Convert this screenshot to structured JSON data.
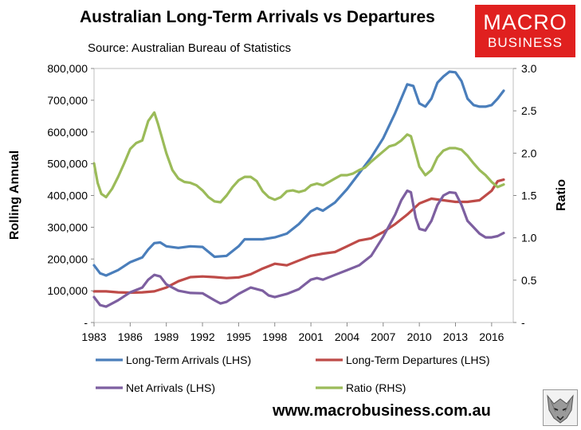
{
  "chart_data": {
    "type": "line",
    "title": "Australian Long-Term Arrivals vs Departures",
    "subtitle": "Source: Australian Bureau of Statistics",
    "ylabel": "Rolling Annual",
    "y2label": "Ratio",
    "xlim": [
      1983,
      2017.2
    ],
    "ylim": [
      0,
      800000
    ],
    "y2lim": [
      0,
      3.0
    ],
    "xticks": [
      "1983",
      "1986",
      "1989",
      "1992",
      "1995",
      "1998",
      "2001",
      "2004",
      "2007",
      "2010",
      "2013",
      "2016"
    ],
    "xtick_values": [
      1983,
      1986,
      1989,
      1992,
      1995,
      1998,
      2001,
      2004,
      2007,
      2010,
      2013,
      2016
    ],
    "yticks": [
      "-",
      "100,000",
      "200,000",
      "300,000",
      "400,000",
      "500,000",
      "600,000",
      "700,000",
      "800,000"
    ],
    "ytick_values": [
      0,
      100000,
      200000,
      300000,
      400000,
      500000,
      600000,
      700000,
      800000
    ],
    "y2ticks": [
      "-",
      "0.5",
      "1.0",
      "1.5",
      "2.0",
      "2.5",
      "3.0"
    ],
    "y2tick_values": [
      0,
      0.5,
      1.0,
      1.5,
      2.0,
      2.5,
      3.0
    ],
    "legend_position": "bottom",
    "series": [
      {
        "name": "Long-Term Arrivals (LHS)",
        "axis": "left",
        "color": "#4a7ebb",
        "x": [
          1983,
          1983.5,
          1984,
          1985,
          1986,
          1987,
          1987.5,
          1988,
          1988.5,
          1989,
          1990,
          1991,
          1992,
          1993,
          1994,
          1995,
          1995.5,
          1996,
          1997,
          1998,
          1999,
          2000,
          2001,
          2001.5,
          2002,
          2003,
          2004,
          2005,
          2006,
          2007,
          2008,
          2009,
          2009.5,
          2010,
          2010.5,
          2011,
          2011.5,
          2012,
          2012.5,
          2013,
          2013.5,
          2014,
          2014.5,
          2015,
          2015.5,
          2016,
          2016.5,
          2017
        ],
        "y": [
          180000,
          155000,
          148000,
          165000,
          190000,
          205000,
          230000,
          250000,
          252000,
          240000,
          235000,
          240000,
          238000,
          207000,
          210000,
          240000,
          262000,
          262000,
          262000,
          268000,
          280000,
          310000,
          350000,
          360000,
          352000,
          378000,
          420000,
          470000,
          520000,
          580000,
          660000,
          750000,
          745000,
          690000,
          680000,
          705000,
          755000,
          775000,
          790000,
          788000,
          760000,
          705000,
          685000,
          680000,
          680000,
          685000,
          705000,
          730000
        ]
      },
      {
        "name": "Long-Term Departures (LHS)",
        "axis": "left",
        "color": "#be4b48",
        "x": [
          1983,
          1984,
          1985,
          1986,
          1987,
          1988,
          1989,
          1990,
          1991,
          1992,
          1993,
          1994,
          1995,
          1996,
          1997,
          1998,
          1999,
          2000,
          2001,
          2002,
          2003,
          2004,
          2005,
          2006,
          2007,
          2008,
          2009,
          2010,
          2011,
          2012,
          2013,
          2014,
          2015,
          2016,
          2016.5,
          2017
        ],
        "y": [
          98000,
          98000,
          95000,
          94000,
          95000,
          98000,
          110000,
          130000,
          143000,
          145000,
          143000,
          140000,
          142000,
          152000,
          170000,
          185000,
          180000,
          195000,
          210000,
          217000,
          222000,
          240000,
          258000,
          265000,
          285000,
          310000,
          340000,
          375000,
          390000,
          385000,
          380000,
          380000,
          385000,
          415000,
          445000,
          450000
        ]
      },
      {
        "name": "Net Arrivals (LHS)",
        "axis": "left",
        "color": "#7d5fa0",
        "x": [
          1983,
          1983.5,
          1984,
          1985,
          1986,
          1987,
          1987.5,
          1988,
          1988.5,
          1989,
          1990,
          1991,
          1992,
          1993,
          1993.5,
          1994,
          1995,
          1995.5,
          1996,
          1997,
          1997.5,
          1998,
          1999,
          2000,
          2000.5,
          2001,
          2001.5,
          2002,
          2003,
          2004,
          2005,
          2006,
          2007,
          2008,
          2008.5,
          2009,
          2009.3,
          2009.7,
          2010,
          2010.5,
          2011,
          2011.5,
          2012,
          2012.5,
          2013,
          2013.5,
          2014,
          2014.5,
          2015,
          2015.5,
          2016,
          2016.5,
          2017
        ],
        "y": [
          80000,
          55000,
          50000,
          70000,
          95000,
          110000,
          135000,
          150000,
          145000,
          120000,
          100000,
          93000,
          92000,
          70000,
          60000,
          65000,
          90000,
          100000,
          110000,
          100000,
          85000,
          80000,
          90000,
          105000,
          120000,
          135000,
          140000,
          135000,
          150000,
          165000,
          180000,
          210000,
          270000,
          340000,
          385000,
          415000,
          410000,
          330000,
          295000,
          290000,
          320000,
          370000,
          400000,
          410000,
          408000,
          370000,
          320000,
          300000,
          280000,
          268000,
          268000,
          272000,
          282000
        ]
      },
      {
        "name": "Ratio (RHS)",
        "axis": "right",
        "color": "#9bbb59",
        "x": [
          1983,
          1983.3,
          1983.6,
          1984,
          1984.5,
          1985,
          1985.5,
          1986,
          1986.5,
          1987,
          1987.5,
          1988,
          1988.3,
          1988.6,
          1989,
          1989.5,
          1990,
          1990.5,
          1991,
          1991.5,
          1992,
          1992.5,
          1993,
          1993.5,
          1994,
          1994.5,
          1995,
          1995.5,
          1996,
          1996.5,
          1997,
          1997.5,
          1998,
          1998.5,
          1999,
          1999.5,
          2000,
          2000.5,
          2001,
          2001.5,
          2002,
          2002.5,
          2003,
          2003.5,
          2004,
          2004.5,
          2005,
          2005.5,
          2006,
          2006.5,
          2007,
          2007.5,
          2008,
          2008.5,
          2009,
          2009.3,
          2009.6,
          2010,
          2010.5,
          2011,
          2011.5,
          2012,
          2012.5,
          2013,
          2013.5,
          2014,
          2014.5,
          2015,
          2015.5,
          2016,
          2016.5,
          2017
        ],
        "y": [
          1.88,
          1.65,
          1.52,
          1.48,
          1.58,
          1.72,
          1.88,
          2.05,
          2.12,
          2.15,
          2.38,
          2.48,
          2.35,
          2.2,
          2.0,
          1.8,
          1.7,
          1.66,
          1.65,
          1.62,
          1.56,
          1.48,
          1.43,
          1.42,
          1.5,
          1.6,
          1.68,
          1.72,
          1.72,
          1.67,
          1.55,
          1.48,
          1.45,
          1.48,
          1.55,
          1.56,
          1.54,
          1.56,
          1.62,
          1.64,
          1.62,
          1.66,
          1.7,
          1.74,
          1.74,
          1.76,
          1.8,
          1.83,
          1.9,
          1.96,
          2.02,
          2.08,
          2.1,
          2.15,
          2.22,
          2.2,
          2.05,
          1.84,
          1.74,
          1.8,
          1.95,
          2.03,
          2.06,
          2.06,
          2.04,
          1.97,
          1.88,
          1.8,
          1.74,
          1.66,
          1.6,
          1.63
        ]
      }
    ]
  },
  "logo": {
    "line1": "MACRO",
    "line2": "BUSINESS"
  },
  "website": "www.macrobusiness.com.au",
  "wolf_icon": "wolf-logo-icon"
}
